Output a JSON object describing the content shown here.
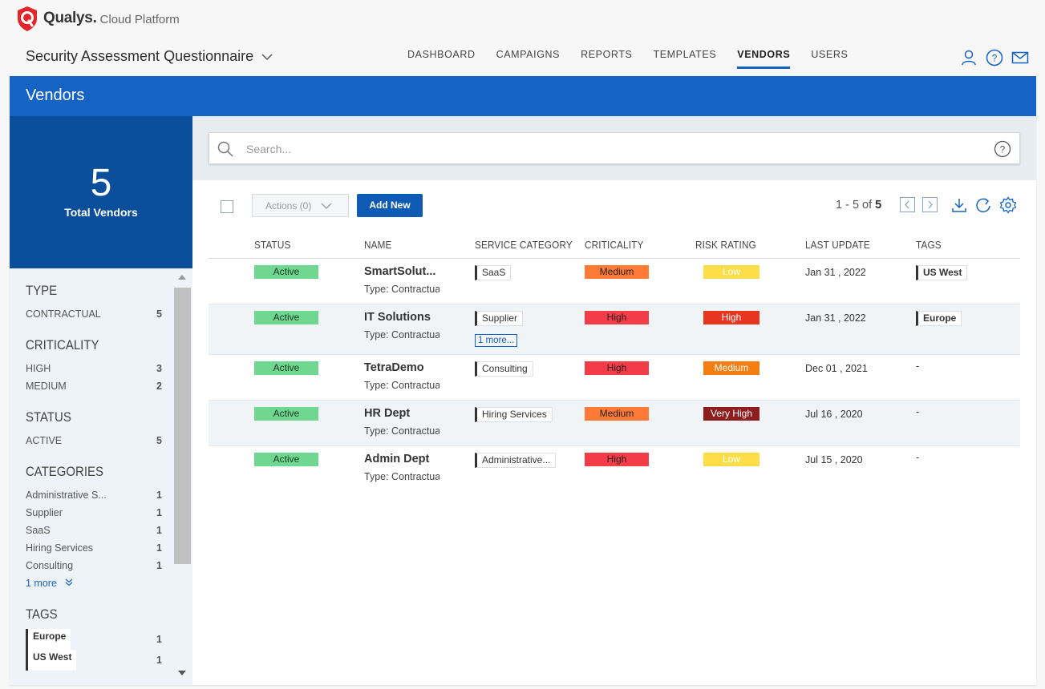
{
  "brand": {
    "name": "Qualys.",
    "sub": "Cloud Platform"
  },
  "app_title": "Security Assessment Questionnaire",
  "nav": [
    "DASHBOARD",
    "CAMPAIGNS",
    "REPORTS",
    "TEMPLATES",
    "VENDORS",
    "USERS"
  ],
  "nav_active": "VENDORS",
  "panel_title": "Vendors",
  "summary": {
    "total": "5",
    "label": "Total Vendors"
  },
  "filters": {
    "type": {
      "title": "TYPE",
      "items": [
        {
          "label": "CONTRACTUAL",
          "count": "5"
        }
      ]
    },
    "criticality": {
      "title": "CRITICALITY",
      "items": [
        {
          "label": "HIGH",
          "count": "3"
        },
        {
          "label": "MEDIUM",
          "count": "2"
        }
      ]
    },
    "status": {
      "title": "STATUS",
      "items": [
        {
          "label": "ACTIVE",
          "count": "5"
        }
      ]
    },
    "categories": {
      "title": "CATEGORIES",
      "items": [
        {
          "label": "Administrative S...",
          "count": "1"
        },
        {
          "label": "Supplier",
          "count": "1"
        },
        {
          "label": "SaaS",
          "count": "1"
        },
        {
          "label": "Hiring Services",
          "count": "1"
        },
        {
          "label": "Consulting",
          "count": "1"
        }
      ],
      "more": "1 more"
    },
    "tags": {
      "title": "TAGS",
      "items": [
        {
          "label": "Europe",
          "count": "1"
        },
        {
          "label": "US West",
          "count": "1"
        }
      ]
    }
  },
  "search": {
    "placeholder": "Search..."
  },
  "toolbar": {
    "actions": "Actions (0)",
    "add_new": "Add New",
    "pager_range": "1 - 5 of",
    "pager_total": "5"
  },
  "columns": [
    "STATUS",
    "NAME",
    "SERVICE CATEGORY",
    "CRITICALITY",
    "RISK RATING",
    "LAST UPDATE",
    "TAGS"
  ],
  "vendors": [
    {
      "status": "Active",
      "name": "SmartSolut...",
      "type": "Type: Contractual",
      "service": "SaaS",
      "service_more": "",
      "criticality": "Medium",
      "risk": "Low",
      "last_update": "Jan 31 , 2022",
      "tag": "US West"
    },
    {
      "status": "Active",
      "name": "IT Solutions",
      "type": "Type: Contractual",
      "service": "Supplier",
      "service_more": "1 more...",
      "criticality": "High",
      "risk": "High",
      "last_update": "Jan 31 , 2022",
      "tag": "Europe"
    },
    {
      "status": "Active",
      "name": "TetraDemo",
      "type": "Type: Contractual",
      "service": "Consulting",
      "service_more": "",
      "criticality": "High",
      "risk": "Medium",
      "last_update": "Dec 01 , 2021",
      "tag": "-"
    },
    {
      "status": "Active",
      "name": "HR Dept",
      "type": "Type: Contractual",
      "service": "Hiring Services",
      "service_more": "",
      "criticality": "Medium",
      "risk": "Very High",
      "last_update": "Jul 16 , 2020",
      "tag": "-"
    },
    {
      "status": "Active",
      "name": "Admin Dept",
      "type": "Type: Contractual",
      "service": "Administrative...",
      "service_more": "",
      "criticality": "High",
      "risk": "Low",
      "last_update": "Jul 15 , 2020",
      "tag": "-"
    }
  ],
  "colors": {
    "accent": "#1563c5",
    "active": "#6fd78f",
    "medium": "#ff7a36",
    "high": "#f43b48",
    "low": "#fddd48",
    "risk_high": "#e8351f",
    "risk_medium": "#f47e12",
    "very_high": "#8e1d1d"
  },
  "icons": [
    "qualys-shield-logo",
    "chevron-down-icon",
    "user-icon",
    "help-icon",
    "mail-icon",
    "search-icon",
    "prev-page-icon",
    "next-page-icon",
    "download-icon",
    "refresh-icon",
    "settings-icon"
  ]
}
